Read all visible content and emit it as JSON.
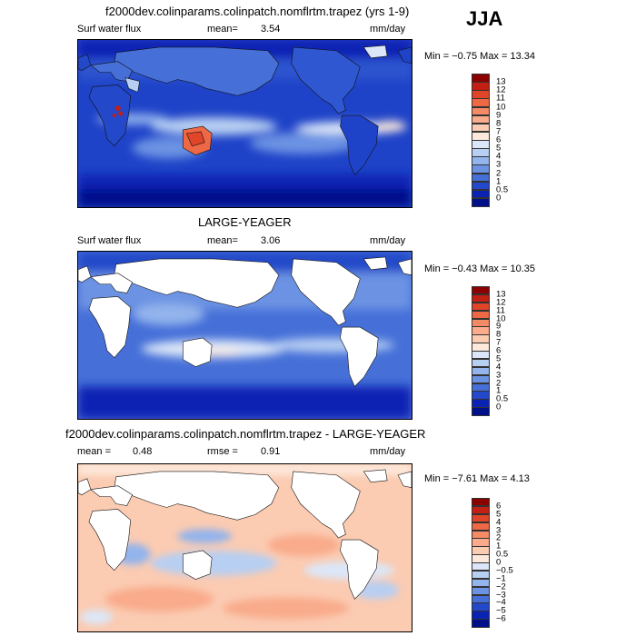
{
  "season": "JJA",
  "panels": [
    {
      "title": "f2000dev.colinparams.colinpatch.nomflrtm.trapez (yrs 1-9)",
      "left_label": "Surf water flux",
      "stat_label": "mean=",
      "stat_value": "3.54",
      "units": "mm/day",
      "minmax_text": "Min =  −0.75 Max =   13.34",
      "land_masked": false
    },
    {
      "title": "LARGE-YEAGER",
      "left_label": "Surf water flux",
      "stat_label": "mean=",
      "stat_value": "3.06",
      "units": "mm/day",
      "minmax_text": "Min =  −0.43 Max =   10.35",
      "land_masked": true
    },
    {
      "title": "f2000dev.colinparams.colinpatch.nomflrtm.trapez - LARGE-YEAGER",
      "left_label": "mean =",
      "left_value": "0.48",
      "stat_label": "rmse =",
      "stat_value": "0.91",
      "units": "mm/day",
      "minmax_text": "Min =  −7.61 Max =    4.13",
      "land_masked": true
    }
  ],
  "colorbar_abs": {
    "labels": [
      "13",
      "12",
      "11",
      "10",
      "9",
      "8",
      "7",
      "6",
      "5",
      "4",
      "3",
      "2",
      "1",
      "0.5",
      "0"
    ],
    "colors": [
      "#8b0000",
      "#c31f12",
      "#e0452a",
      "#ee6845",
      "#f58a66",
      "#f9ab8b",
      "#fbcbb2",
      "#fde9dc",
      "#dbe7f8",
      "#b7cff2",
      "#93b4ec",
      "#6c93e3",
      "#4670d8",
      "#2348c9",
      "#0a23b3",
      "#00108a"
    ]
  },
  "colorbar_diff": {
    "labels": [
      "6",
      "5",
      "4",
      "3",
      "2",
      "1",
      "0.5",
      "0",
      "−0.5",
      "−1",
      "−2",
      "−3",
      "−4",
      "−5",
      "−6"
    ],
    "colors": [
      "#8b0000",
      "#c31f12",
      "#e0452a",
      "#ee6845",
      "#f58a66",
      "#f9ab8b",
      "#fbcbb2",
      "#fde9dc",
      "#dbe7f8",
      "#b7cff2",
      "#93b4ec",
      "#6c93e3",
      "#4670d8",
      "#2348c9",
      "#0a23b3",
      "#00108a"
    ]
  }
}
